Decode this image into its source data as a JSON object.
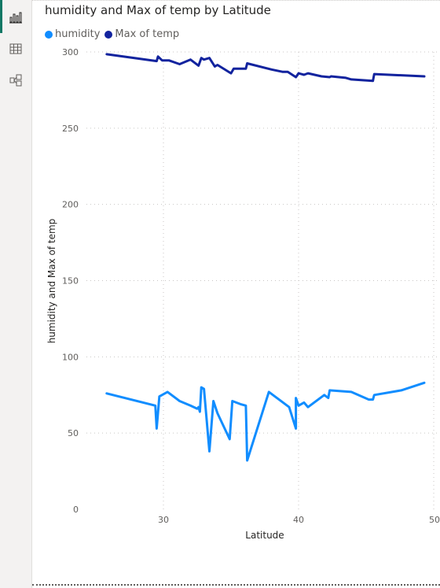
{
  "rail": {
    "icons": [
      "report-view-icon",
      "table-view-icon",
      "model-view-icon"
    ]
  },
  "title": "humidity and Max of temp by Latitude",
  "legend": [
    {
      "label": "humidity",
      "color": "#118dff"
    },
    {
      "label": "Max of temp",
      "color": "#12239e"
    }
  ],
  "chart_data": {
    "type": "line",
    "title": "humidity and Max of temp by Latitude",
    "xlabel": "Latitude",
    "ylabel": "humidity and Max of temp",
    "xlim": [
      24,
      50
    ],
    "ylim": [
      0,
      300
    ],
    "x_ticks": [
      "30",
      "40",
      "50"
    ],
    "y_ticks": [
      "0",
      "50",
      "100",
      "150",
      "200",
      "250",
      "300"
    ],
    "grid": true,
    "legend_position": "top-left",
    "series": [
      {
        "name": "humidity",
        "color": "#118dff",
        "points": [
          [
            25.8,
            76
          ],
          [
            29.4,
            68
          ],
          [
            29.5,
            53
          ],
          [
            29.7,
            74
          ],
          [
            30.3,
            77
          ],
          [
            31.2,
            71
          ],
          [
            32.0,
            68
          ],
          [
            32.5,
            66
          ],
          [
            32.6,
            67
          ],
          [
            32.7,
            64
          ],
          [
            32.8,
            80
          ],
          [
            33.0,
            79
          ],
          [
            33.4,
            38
          ],
          [
            33.7,
            71
          ],
          [
            34.0,
            63
          ],
          [
            34.9,
            46
          ],
          [
            35.1,
            71
          ],
          [
            35.7,
            69
          ],
          [
            36.1,
            68
          ],
          [
            36.2,
            32
          ],
          [
            37.8,
            77
          ],
          [
            39.3,
            67
          ],
          [
            39.8,
            53
          ],
          [
            39.8,
            73
          ],
          [
            40.0,
            68
          ],
          [
            40.4,
            70
          ],
          [
            40.7,
            67
          ],
          [
            41.9,
            75
          ],
          [
            42.2,
            73
          ],
          [
            42.3,
            78
          ],
          [
            43.9,
            77
          ],
          [
            45.2,
            72
          ],
          [
            45.5,
            72
          ],
          [
            45.6,
            75
          ],
          [
            47.6,
            78
          ],
          [
            49.3,
            83
          ]
        ]
      },
      {
        "name": "Max of temp",
        "color": "#12239e",
        "points": [
          [
            25.8,
            298.5
          ],
          [
            29.5,
            294
          ],
          [
            29.6,
            297
          ],
          [
            29.9,
            294.5
          ],
          [
            30.4,
            294.5
          ],
          [
            31.2,
            292
          ],
          [
            32.0,
            295
          ],
          [
            32.6,
            291
          ],
          [
            32.8,
            296
          ],
          [
            33.0,
            295
          ],
          [
            33.4,
            296
          ],
          [
            33.8,
            290.5
          ],
          [
            34.0,
            291.5
          ],
          [
            35.0,
            286
          ],
          [
            35.2,
            289
          ],
          [
            36.1,
            289
          ],
          [
            36.2,
            292.5
          ],
          [
            38.0,
            288.5
          ],
          [
            38.8,
            287
          ],
          [
            39.2,
            287
          ],
          [
            39.8,
            283.5
          ],
          [
            40.0,
            286
          ],
          [
            40.4,
            285
          ],
          [
            40.7,
            286
          ],
          [
            41.7,
            284
          ],
          [
            42.3,
            283.5
          ],
          [
            42.4,
            284
          ],
          [
            43.5,
            283
          ],
          [
            43.9,
            282
          ],
          [
            45.5,
            281
          ],
          [
            45.6,
            285.5
          ],
          [
            49.3,
            284
          ]
        ]
      }
    ]
  }
}
